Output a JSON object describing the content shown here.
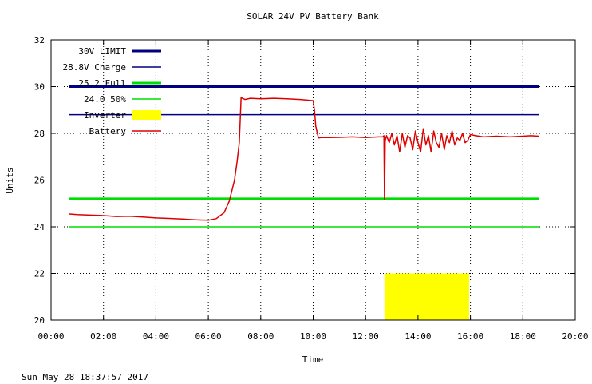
{
  "chart_data": {
    "type": "line",
    "title": "SOLAR 24V PV Battery Bank",
    "xlabel": "Time",
    "ylabel": "Units",
    "xlim": [
      0,
      20
    ],
    "ylim": [
      20,
      32
    ],
    "x_ticks": [
      "00:00",
      "02:00",
      "04:00",
      "06:00",
      "08:00",
      "10:00",
      "12:00",
      "14:00",
      "16:00",
      "18:00",
      "20:00"
    ],
    "y_ticks": [
      "20",
      "22",
      "24",
      "26",
      "28",
      "30",
      "32"
    ],
    "grid": true,
    "legend_position": "top-left",
    "reference_lines": [
      {
        "name": "30V LIMIT",
        "value": 30.0,
        "x": [
          0.67,
          18.6
        ],
        "color": "#000080",
        "style": "thick"
      },
      {
        "name": "28.8V Charge",
        "value": 28.8,
        "x": [
          0.67,
          18.6
        ],
        "color": "#000080",
        "style": "thin"
      },
      {
        "name": "25.2 Full",
        "value": 25.2,
        "x": [
          0.67,
          18.6
        ],
        "color": "#00dd00",
        "style": "thick"
      },
      {
        "name": "24.0 50%",
        "value": 24.0,
        "x": [
          0.67,
          18.6
        ],
        "color": "#00dd00",
        "style": "thin"
      }
    ],
    "inverter": {
      "name": "Inverter",
      "x_start": 12.72,
      "x_end": 15.95,
      "y_top": 22.0,
      "color": "#ffff00"
    },
    "battery": {
      "name": "Battery",
      "color": "#dd0000",
      "x": [
        0.67,
        1.0,
        1.5,
        2.0,
        2.5,
        3.0,
        3.5,
        4.0,
        4.5,
        5.0,
        5.5,
        6.0,
        6.3,
        6.6,
        6.8,
        7.0,
        7.1,
        7.18,
        7.25,
        7.3,
        7.4,
        7.6,
        8.0,
        8.5,
        9.0,
        9.5,
        10.0,
        10.05,
        10.1,
        10.2,
        10.3,
        10.6,
        11.0,
        11.5,
        12.0,
        12.5,
        12.65,
        12.7,
        12.72,
        12.75,
        12.8,
        12.9,
        13.0,
        13.1,
        13.2,
        13.3,
        13.4,
        13.5,
        13.6,
        13.7,
        13.8,
        13.9,
        14.0,
        14.1,
        14.2,
        14.3,
        14.4,
        14.5,
        14.6,
        14.7,
        14.8,
        14.9,
        15.0,
        15.1,
        15.2,
        15.3,
        15.4,
        15.5,
        15.6,
        15.7,
        15.8,
        15.9,
        16.0,
        16.2,
        16.5,
        17.0,
        17.5,
        18.0,
        18.3,
        18.6
      ],
      "y": [
        24.55,
        24.52,
        24.5,
        24.48,
        24.44,
        24.45,
        24.42,
        24.38,
        24.36,
        24.33,
        24.3,
        24.28,
        24.35,
        24.6,
        25.1,
        26.0,
        26.8,
        27.6,
        29.55,
        29.5,
        29.45,
        29.5,
        29.48,
        29.5,
        29.48,
        29.45,
        29.4,
        29.0,
        28.3,
        27.8,
        27.82,
        27.82,
        27.83,
        27.85,
        27.82,
        27.85,
        27.85,
        27.9,
        25.15,
        27.7,
        27.9,
        27.6,
        28.0,
        27.5,
        27.9,
        27.2,
        28.0,
        27.4,
        27.9,
        27.8,
        27.3,
        28.1,
        27.6,
        27.2,
        28.2,
        27.5,
        27.9,
        27.2,
        28.1,
        27.6,
        27.4,
        28.0,
        27.3,
        27.9,
        27.6,
        28.1,
        27.5,
        27.8,
        27.7,
        28.0,
        27.6,
        27.7,
        27.95,
        27.9,
        27.85,
        27.88,
        27.85,
        27.88,
        27.9,
        27.88
      ]
    }
  },
  "footer": {
    "timestamp": "Sun May 28 18:37:57 2017"
  }
}
